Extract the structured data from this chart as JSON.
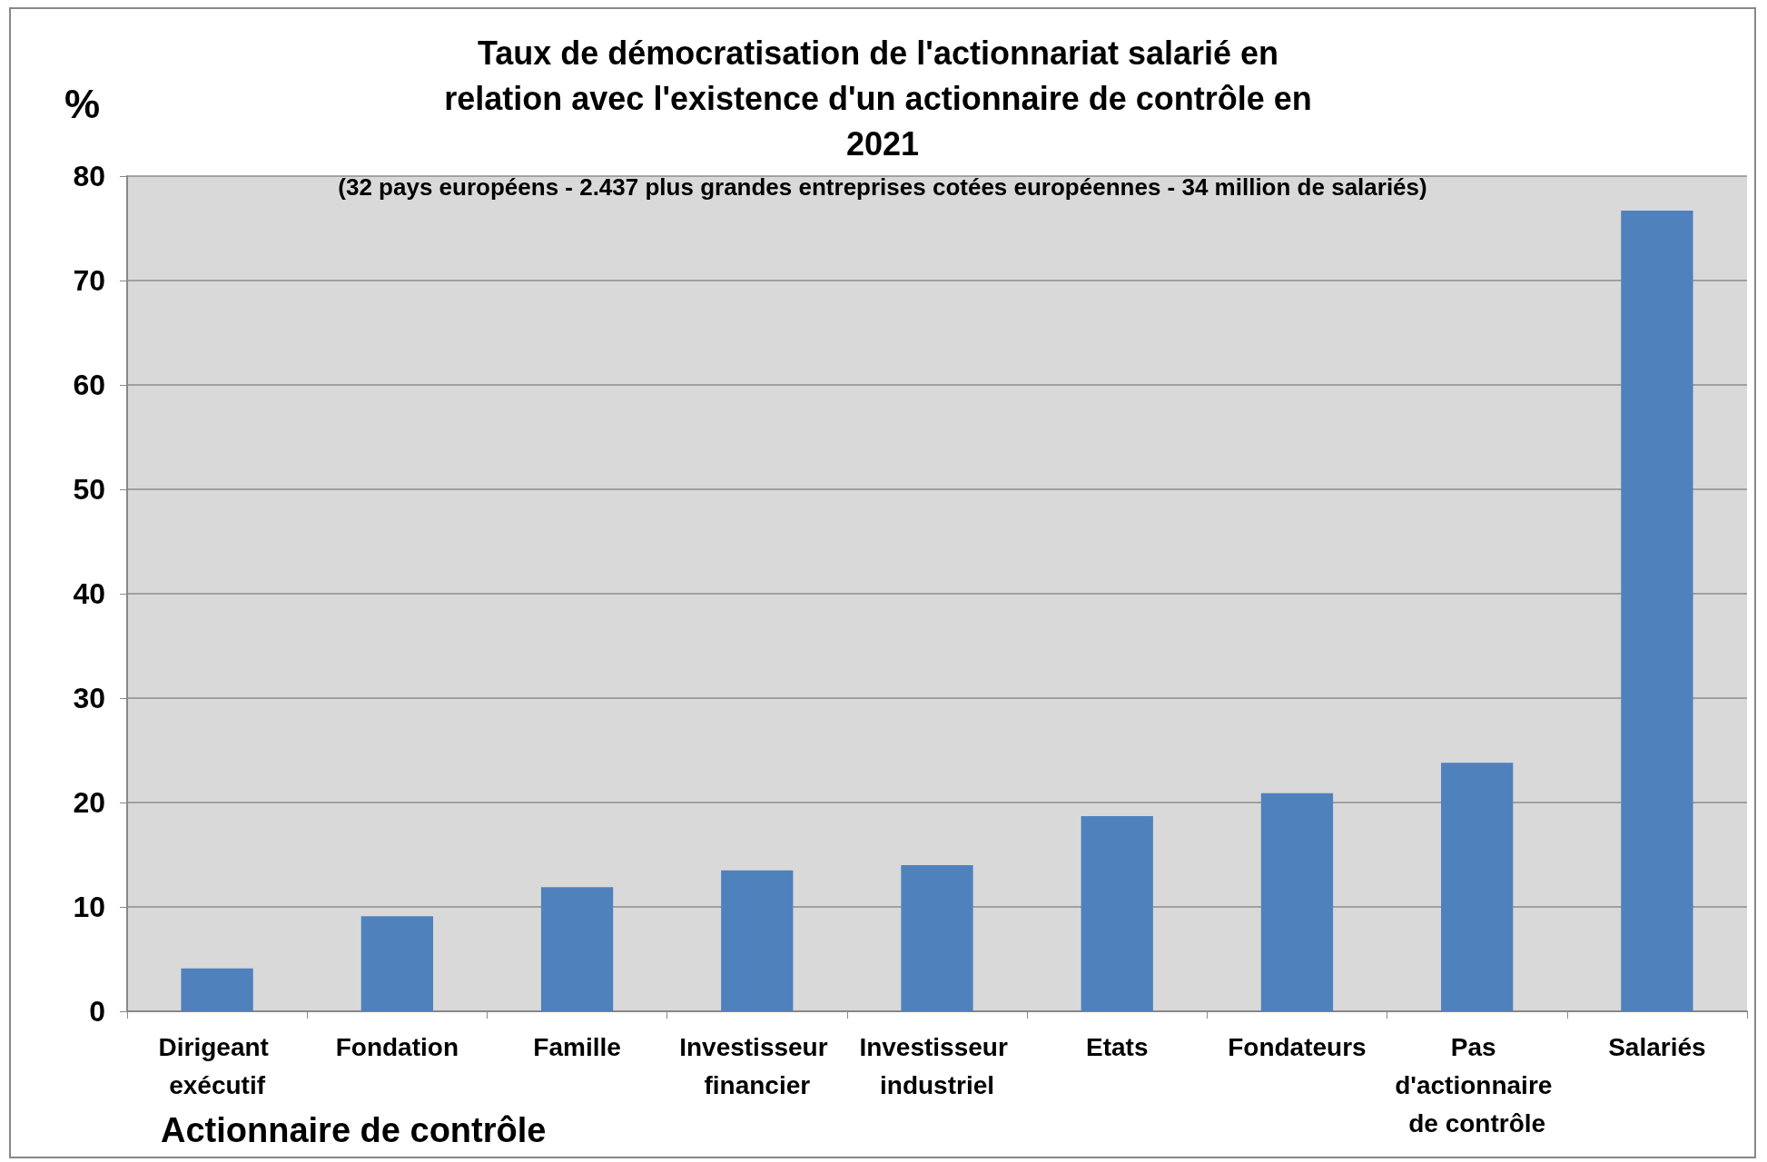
{
  "chart_data": {
    "type": "bar",
    "title": "Taux de démocratisation de l'actionnariat salarié en relation avec l'existence d'un actionnaire de contrôle en 2021",
    "subtitle": "(32 pays européens - 2.437 plus grandes entreprises cotées européennes - 34 million de salariés)",
    "ylabel": "%",
    "xlabel": "Actionnaire de contrôle",
    "categories": [
      "Dirigeant exécutif",
      "Fondation",
      "Famille",
      "Investisseur financier",
      "Investisseur industriel",
      "Etats",
      "Fondateurs",
      "Pas d'actionnaire de contrôle",
      "Salariés"
    ],
    "values": [
      4.1,
      9.1,
      11.9,
      13.5,
      14.0,
      18.7,
      20.9,
      23.8,
      76.7
    ],
    "color": "#4f81bd",
    "ylim": [
      0,
      80
    ],
    "yticks": [
      0,
      10,
      20,
      30,
      40,
      50,
      60,
      70,
      80
    ],
    "grid": "y"
  }
}
